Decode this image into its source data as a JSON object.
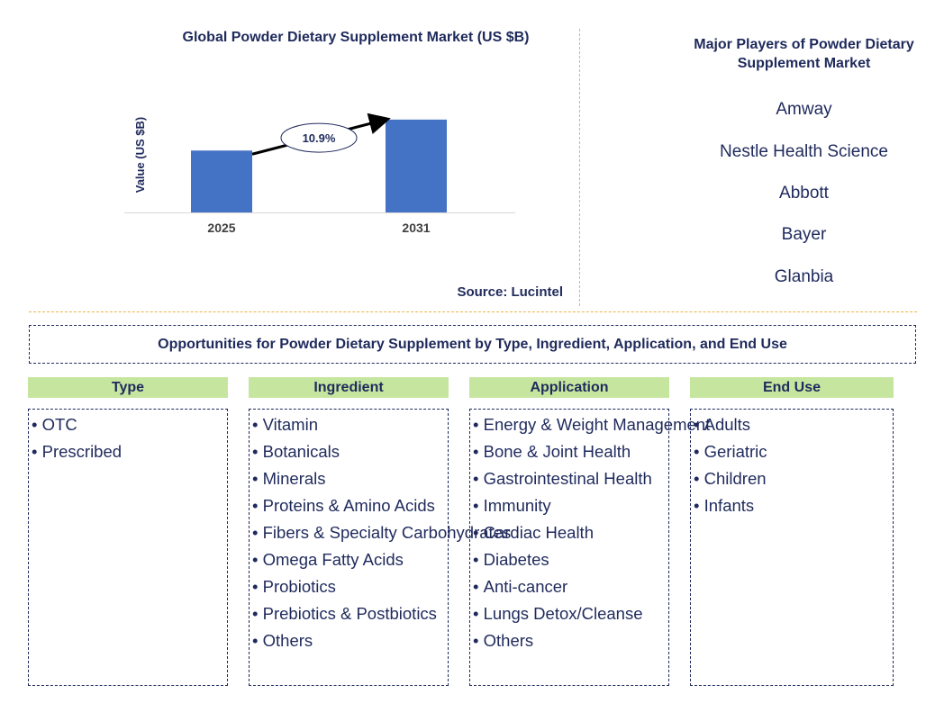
{
  "chart_data": {
    "type": "bar",
    "title": "Global Powder Dietary Supplement Market (US $B)",
    "ylabel": "Value (US $B)",
    "xlabel": "",
    "categories": [
      "2025",
      "2031"
    ],
    "values": [
      1.0,
      1.5
    ],
    "ylim": [
      0,
      1.6
    ],
    "annotation": "10.9%",
    "bar_color": "#4472c4"
  },
  "source": "Source: Lucintel",
  "players": {
    "title": "Major Players of Powder Dietary Supplement Market",
    "items": [
      "Amway",
      "Nestle Health Science",
      "Abbott",
      "Bayer",
      "Glanbia"
    ]
  },
  "opportunities": {
    "title": "Opportunities for Powder Dietary Supplement by Type, Ingredient, Application, and End Use",
    "columns": [
      {
        "header": "Type",
        "items": [
          "OTC",
          "Prescribed"
        ]
      },
      {
        "header": "Ingredient",
        "items": [
          "Vitamin",
          "Botanicals",
          "Minerals",
          "Proteins & Amino Acids",
          "Fibers & Specialty Carbohydrates",
          "Omega Fatty Acids",
          "Probiotics",
          "Prebiotics & Postbiotics",
          "Others"
        ]
      },
      {
        "header": "Application",
        "items": [
          "Energy & Weight Management",
          "Bone & Joint Health",
          "Gastrointestinal Health",
          "Immunity",
          "Cardiac Health",
          "Diabetes",
          "Anti-cancer",
          "Lungs Detox/Cleanse",
          "Others"
        ]
      },
      {
        "header": "End Use",
        "items": [
          "Adults",
          "Geriatric",
          "Children",
          "Infants"
        ]
      }
    ]
  }
}
